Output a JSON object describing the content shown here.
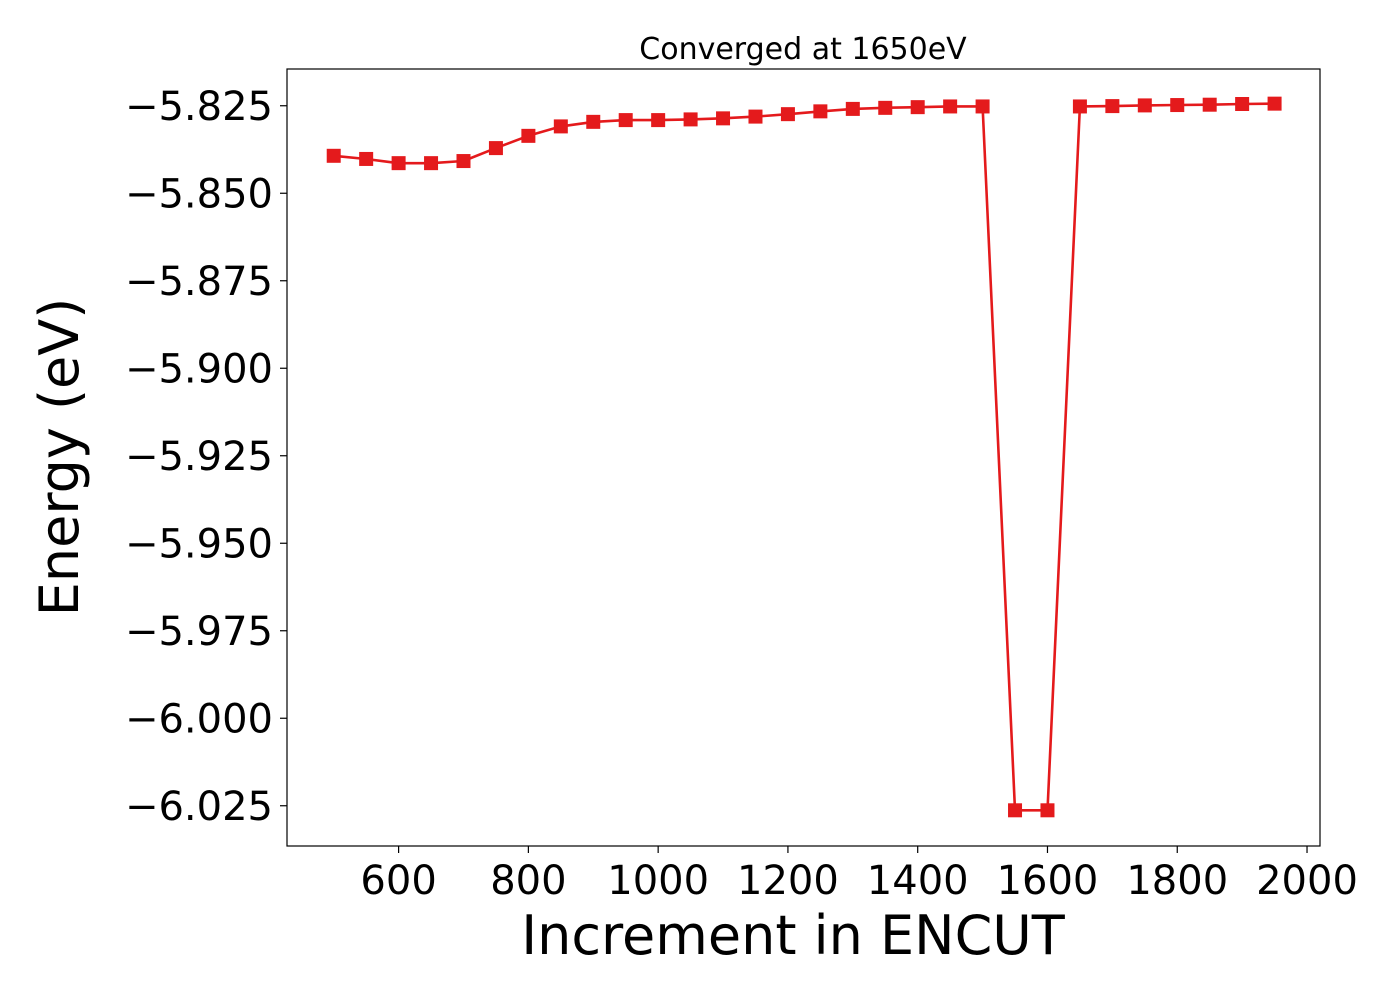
{
  "chart_data": {
    "type": "line",
    "title": "Converged at 1650eV",
    "xlabel": "Increment in ENCUT",
    "ylabel": "Energy (eV)",
    "xlim": [
      428,
      2020
    ],
    "ylim": [
      -6.0365,
      -5.8145
    ],
    "xticks": [
      600,
      800,
      1000,
      1200,
      1400,
      1600,
      1800,
      2000
    ],
    "xtick_labels": [
      "600",
      "800",
      "1000",
      "1200",
      "1400",
      "1600",
      "1800",
      "2000"
    ],
    "yticks": [
      -5.825,
      -5.85,
      -5.875,
      -5.9,
      -5.925,
      -5.95,
      -5.975,
      -6.0,
      -6.025
    ],
    "ytick_labels": [
      "−5.825",
      "−5.850",
      "−5.875",
      "−5.900",
      "−5.925",
      "−5.950",
      "−5.975",
      "−6.000",
      "−6.025"
    ],
    "grid": false,
    "series": [
      {
        "color": "#e41a1c",
        "marker": "square",
        "x": [
          500,
          550,
          600,
          650,
          700,
          750,
          800,
          850,
          900,
          950,
          1000,
          1050,
          1100,
          1150,
          1200,
          1250,
          1300,
          1350,
          1400,
          1450,
          1500,
          1550,
          1600,
          1650,
          1700,
          1750,
          1800,
          1850,
          1900,
          1950
        ],
        "y": [
          -5.8393,
          -5.8402,
          -5.8414,
          -5.8414,
          -5.8408,
          -5.8371,
          -5.8336,
          -5.8309,
          -5.8296,
          -5.8291,
          -5.8291,
          -5.8289,
          -5.8286,
          -5.8281,
          -5.8274,
          -5.8266,
          -5.8259,
          -5.8256,
          -5.8254,
          -5.8252,
          -5.8252,
          -6.0263,
          -6.0263,
          -5.8252,
          -5.8251,
          -5.8249,
          -5.8248,
          -5.8247,
          -5.8245,
          -5.8244
        ]
      }
    ]
  }
}
